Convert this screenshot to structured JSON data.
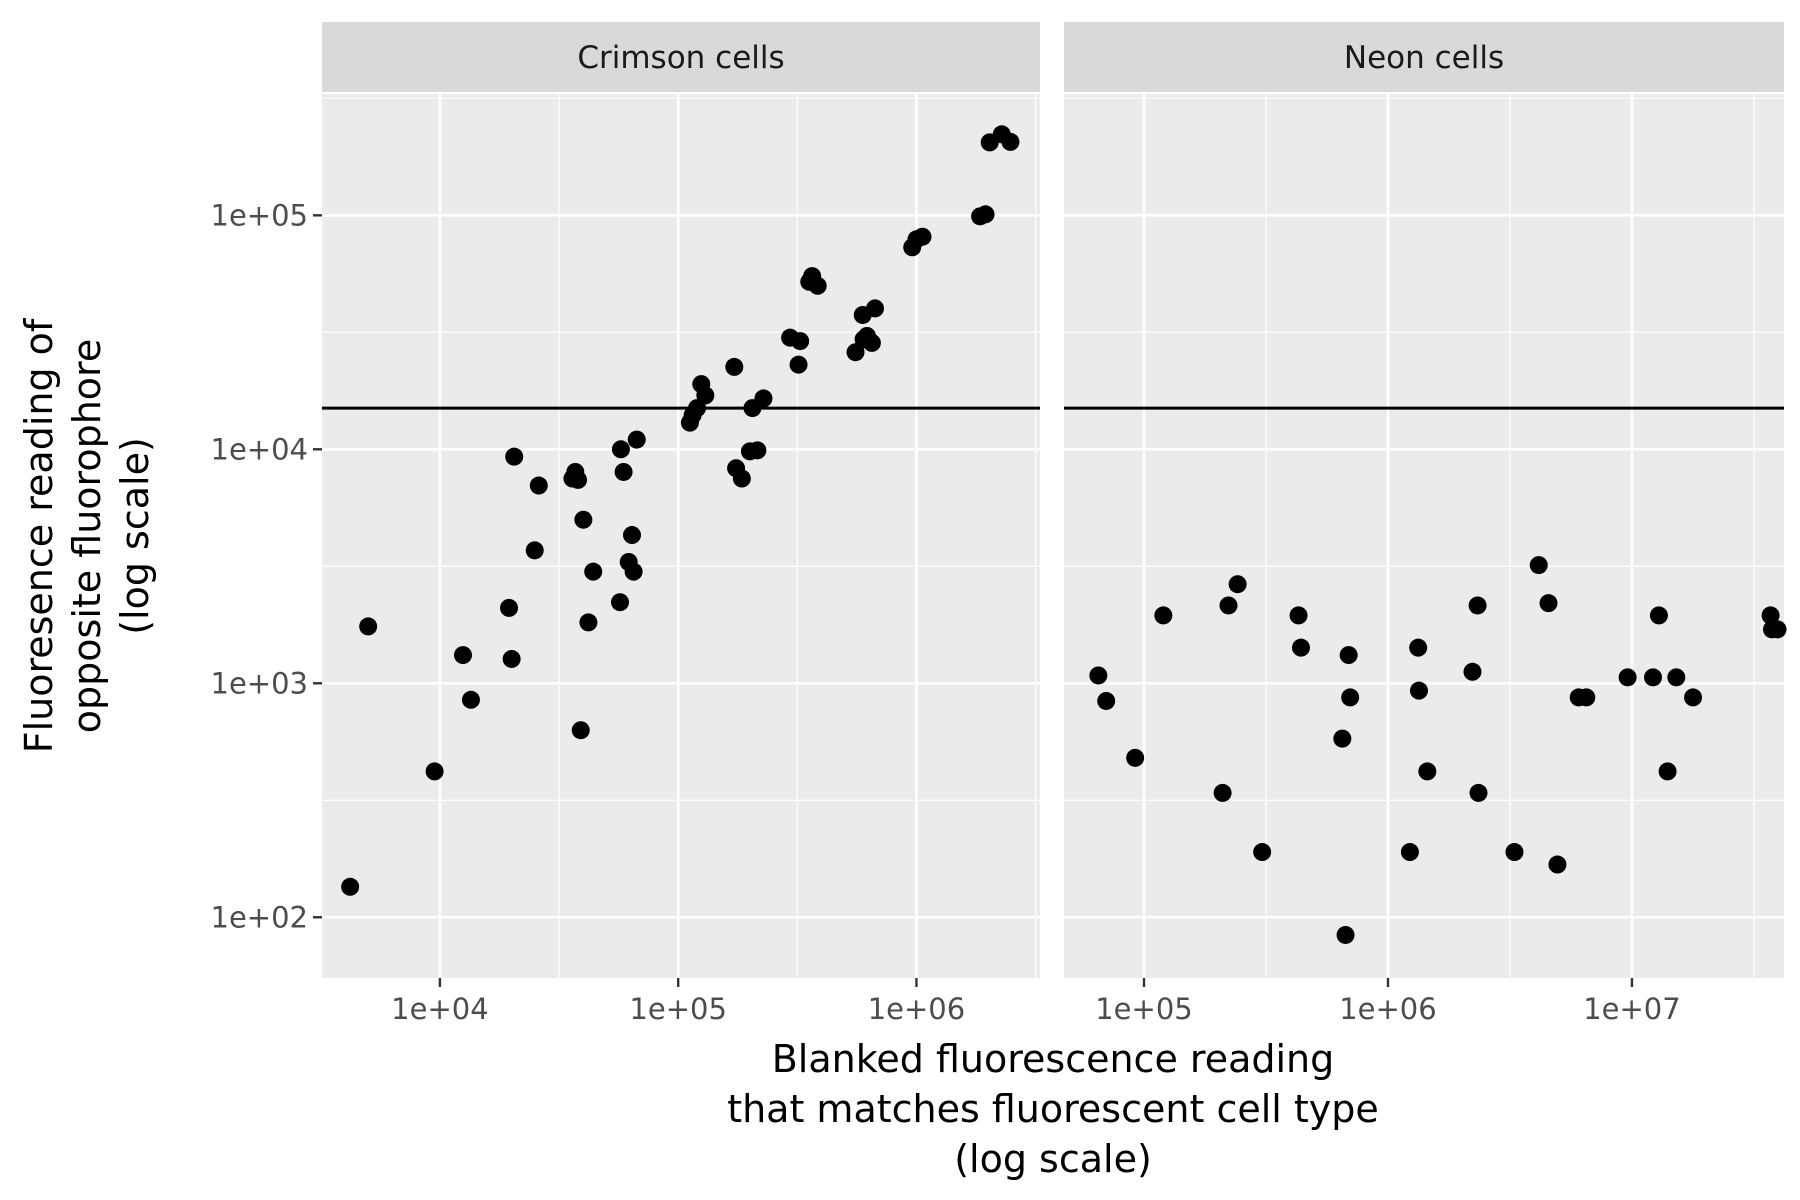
{
  "chart_data": {
    "type": "scatter",
    "facets": [
      {
        "label": "Crimson cells",
        "x_scale": "log10",
        "y_scale": "log10",
        "xlim": [
          3200,
          3300000
        ],
        "ylim": [
          55,
          330000
        ],
        "x_ticks": [
          10000,
          100000,
          1000000
        ],
        "x_tick_labels": [
          "1e+04",
          "1e+05",
          "1e+06"
        ],
        "points": [
          {
            "x": 4200,
            "y": 135
          },
          {
            "x": 5000,
            "y": 1750
          },
          {
            "x": 9500,
            "y": 420
          },
          {
            "x": 12500,
            "y": 1320
          },
          {
            "x": 13500,
            "y": 850
          },
          {
            "x": 19500,
            "y": 2100
          },
          {
            "x": 20000,
            "y": 1270
          },
          {
            "x": 20500,
            "y": 9300
          },
          {
            "x": 25000,
            "y": 3700
          },
          {
            "x": 26000,
            "y": 7000
          },
          {
            "x": 36000,
            "y": 7500
          },
          {
            "x": 37000,
            "y": 8000
          },
          {
            "x": 38000,
            "y": 7400
          },
          {
            "x": 39000,
            "y": 630
          },
          {
            "x": 40000,
            "y": 5000
          },
          {
            "x": 42000,
            "y": 1820
          },
          {
            "x": 44000,
            "y": 3000
          },
          {
            "x": 57000,
            "y": 2220
          },
          {
            "x": 57500,
            "y": 10000
          },
          {
            "x": 59000,
            "y": 8000
          },
          {
            "x": 62000,
            "y": 3300
          },
          {
            "x": 64000,
            "y": 4300
          },
          {
            "x": 65000,
            "y": 3000
          },
          {
            "x": 67000,
            "y": 11000
          },
          {
            "x": 112000,
            "y": 13000
          },
          {
            "x": 115000,
            "y": 14000
          },
          {
            "x": 120000,
            "y": 15000
          },
          {
            "x": 125000,
            "y": 19000
          },
          {
            "x": 130000,
            "y": 17000
          },
          {
            "x": 172000,
            "y": 22500
          },
          {
            "x": 175000,
            "y": 8300
          },
          {
            "x": 185000,
            "y": 7500
          },
          {
            "x": 200000,
            "y": 9800
          },
          {
            "x": 205000,
            "y": 15000
          },
          {
            "x": 215000,
            "y": 9900
          },
          {
            "x": 228000,
            "y": 16500
          },
          {
            "x": 295000,
            "y": 30000
          },
          {
            "x": 320000,
            "y": 23000
          },
          {
            "x": 325000,
            "y": 29000
          },
          {
            "x": 355000,
            "y": 52000
          },
          {
            "x": 365000,
            "y": 55000
          },
          {
            "x": 385000,
            "y": 50000
          },
          {
            "x": 555000,
            "y": 26000
          },
          {
            "x": 595000,
            "y": 37500
          },
          {
            "x": 600000,
            "y": 29500
          },
          {
            "x": 620000,
            "y": 30500
          },
          {
            "x": 650000,
            "y": 28500
          },
          {
            "x": 670000,
            "y": 40000
          },
          {
            "x": 960000,
            "y": 73000
          },
          {
            "x": 1000000,
            "y": 79000
          },
          {
            "x": 1060000,
            "y": 81000
          },
          {
            "x": 1850000,
            "y": 99000
          },
          {
            "x": 1950000,
            "y": 101000
          },
          {
            "x": 2030000,
            "y": 205000
          },
          {
            "x": 2280000,
            "y": 222000
          },
          {
            "x": 2480000,
            "y": 206000
          }
        ]
      },
      {
        "label": "Neon cells",
        "x_scale": "log10",
        "y_scale": "log10",
        "xlim": [
          47000,
          42000000
        ],
        "ylim": [
          55,
          330000
        ],
        "x_ticks": [
          100000,
          1000000,
          10000000
        ],
        "x_tick_labels": [
          "1e+05",
          "1e+06",
          "1e+07"
        ],
        "points": [
          {
            "x": 65000,
            "y": 1080
          },
          {
            "x": 70000,
            "y": 840
          },
          {
            "x": 92000,
            "y": 480
          },
          {
            "x": 120000,
            "y": 1950
          },
          {
            "x": 210000,
            "y": 340
          },
          {
            "x": 222000,
            "y": 2150
          },
          {
            "x": 242000,
            "y": 2650
          },
          {
            "x": 305000,
            "y": 190
          },
          {
            "x": 430000,
            "y": 1950
          },
          {
            "x": 440000,
            "y": 1420
          },
          {
            "x": 650000,
            "y": 580
          },
          {
            "x": 670000,
            "y": 84
          },
          {
            "x": 690000,
            "y": 1320
          },
          {
            "x": 700000,
            "y": 870
          },
          {
            "x": 1230000,
            "y": 190
          },
          {
            "x": 1330000,
            "y": 1420
          },
          {
            "x": 1340000,
            "y": 930
          },
          {
            "x": 1450000,
            "y": 420
          },
          {
            "x": 2220000,
            "y": 1120
          },
          {
            "x": 2330000,
            "y": 2150
          },
          {
            "x": 2350000,
            "y": 340
          },
          {
            "x": 3300000,
            "y": 190
          },
          {
            "x": 4150000,
            "y": 3200
          },
          {
            "x": 4550000,
            "y": 2200
          },
          {
            "x": 4950000,
            "y": 168
          },
          {
            "x": 6050000,
            "y": 870
          },
          {
            "x": 6500000,
            "y": 870
          },
          {
            "x": 9600000,
            "y": 1060
          },
          {
            "x": 12200000,
            "y": 1060
          },
          {
            "x": 12900000,
            "y": 1950
          },
          {
            "x": 14000000,
            "y": 420
          },
          {
            "x": 15200000,
            "y": 1060
          },
          {
            "x": 17800000,
            "y": 870
          },
          {
            "x": 37000000,
            "y": 1950
          },
          {
            "x": 37500000,
            "y": 1700
          },
          {
            "x": 39500000,
            "y": 1700
          }
        ]
      }
    ],
    "hline": 15000,
    "y_ticks": [
      100,
      1000,
      10000,
      100000
    ],
    "y_tick_labels": [
      "1e+02",
      "1e+03",
      "1e+04",
      "1e+05"
    ],
    "xlabel": [
      "Blanked fluorescence reading",
      "that matches fluorescent cell type",
      "(log scale)"
    ],
    "ylabel": [
      "Fluoresence reading of",
      "opposite fluorophore",
      "(log scale)"
    ],
    "grid": true,
    "colors": {
      "point": "#000000",
      "panel": "#ebebeb",
      "strip": "#d9d9d9",
      "grid": "#ffffff",
      "hline": "#000000"
    }
  }
}
